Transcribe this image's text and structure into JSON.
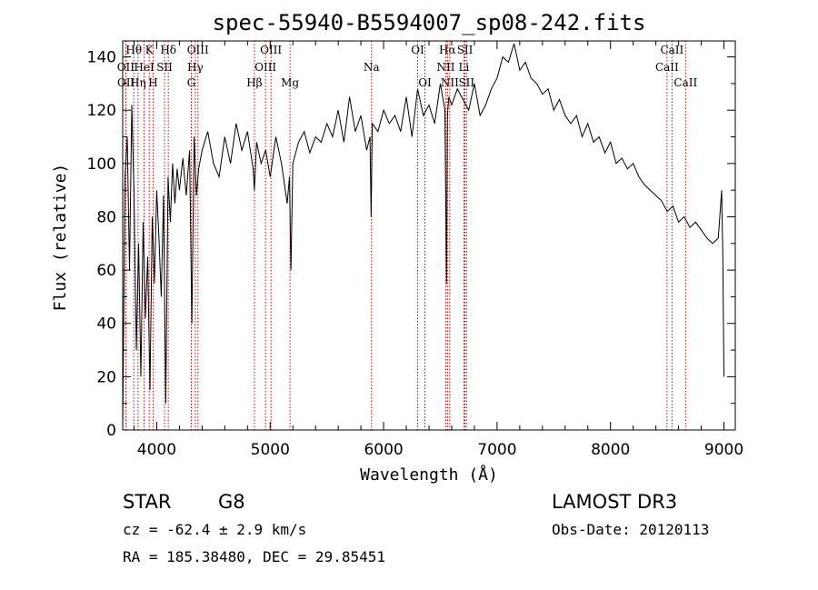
{
  "chart_data": {
    "type": "line",
    "title": "spec-55940-B5594007_sp08-242.fits",
    "xlabel": "Wavelength (Å)",
    "ylabel": "Flux (relative)",
    "xlim": [
      3700,
      9100
    ],
    "ylim": [
      0,
      146
    ],
    "xticks": [
      4000,
      5000,
      6000,
      7000,
      8000,
      9000
    ],
    "yticks": [
      0,
      20,
      40,
      60,
      80,
      100,
      120,
      140
    ],
    "grid": false,
    "series": [
      {
        "name": "flux",
        "x": [
          3700,
          3720,
          3740,
          3760,
          3780,
          3800,
          3820,
          3840,
          3860,
          3880,
          3900,
          3920,
          3940,
          3960,
          3980,
          4000,
          4020,
          4040,
          4060,
          4080,
          4100,
          4120,
          4140,
          4160,
          4180,
          4200,
          4230,
          4260,
          4290,
          4310,
          4330,
          4350,
          4370,
          4400,
          4450,
          4500,
          4550,
          4600,
          4650,
          4700,
          4750,
          4800,
          4850,
          4861,
          4880,
          4920,
          4960,
          5000,
          5050,
          5100,
          5150,
          5170,
          5183,
          5200,
          5250,
          5300,
          5350,
          5400,
          5450,
          5500,
          5550,
          5600,
          5650,
          5700,
          5750,
          5800,
          5850,
          5880,
          5890,
          5900,
          5950,
          6000,
          6050,
          6100,
          6150,
          6200,
          6250,
          6300,
          6350,
          6400,
          6450,
          6500,
          6540,
          6555,
          6563,
          6575,
          6600,
          6650,
          6700,
          6750,
          6800,
          6850,
          6900,
          6950,
          7000,
          7050,
          7100,
          7150,
          7200,
          7250,
          7300,
          7350,
          7400,
          7450,
          7500,
          7550,
          7600,
          7650,
          7700,
          7750,
          7800,
          7850,
          7900,
          7950,
          8000,
          8050,
          8100,
          8150,
          8200,
          8250,
          8300,
          8350,
          8400,
          8450,
          8500,
          8550,
          8600,
          8650,
          8700,
          8750,
          8800,
          8850,
          8900,
          8950,
          8980,
          8990,
          9000
        ],
        "values": [
          0,
          95,
          110,
          60,
          122,
          88,
          30,
          70,
          20,
          78,
          42,
          65,
          15,
          80,
          55,
          90,
          72,
          50,
          88,
          10,
          95,
          78,
          100,
          85,
          98,
          90,
          102,
          88,
          105,
          40,
          110,
          88,
          98,
          105,
          112,
          100,
          95,
          110,
          100,
          115,
          105,
          112,
          98,
          90,
          108,
          100,
          105,
          95,
          110,
          100,
          85,
          95,
          60,
          100,
          108,
          112,
          104,
          110,
          108,
          115,
          110,
          120,
          108,
          125,
          112,
          118,
          105,
          110,
          80,
          115,
          112,
          120,
          115,
          118,
          112,
          125,
          110,
          128,
          118,
          122,
          115,
          130,
          120,
          55,
          118,
          125,
          122,
          128,
          124,
          120,
          130,
          118,
          122,
          128,
          132,
          140,
          138,
          145,
          135,
          138,
          132,
          130,
          126,
          128,
          120,
          124,
          118,
          115,
          118,
          110,
          115,
          108,
          110,
          104,
          108,
          100,
          102,
          98,
          100,
          95,
          92,
          90,
          88,
          86,
          82,
          84,
          78,
          80,
          76,
          78,
          75,
          72,
          70,
          72,
          90,
          65,
          20
        ]
      }
    ],
    "spectral_lines": [
      {
        "label": "Hθ",
        "x": 3798,
        "row": 0
      },
      {
        "label": "OII",
        "x": 3727,
        "row": 1
      },
      {
        "label": "OII",
        "x": 3729,
        "row": 2
      },
      {
        "label": "K",
        "x": 3934,
        "row": 0
      },
      {
        "label": "HeI",
        "x": 3889,
        "row": 1
      },
      {
        "label": "Hη",
        "x": 3835,
        "row": 2
      },
      {
        "label": "Hδ",
        "x": 4102,
        "row": 0
      },
      {
        "label": "SII",
        "x": 4069,
        "row": 1
      },
      {
        "label": "H",
        "x": 3968,
        "row": 2
      },
      {
        "label": "OIII",
        "x": 4363,
        "row": 0
      },
      {
        "label": "Hγ",
        "x": 4340,
        "row": 1
      },
      {
        "label": "G",
        "x": 4305,
        "row": 2
      },
      {
        "label": "OIII",
        "x": 5007,
        "row": 0
      },
      {
        "label": "OIII",
        "x": 4959,
        "row": 1
      },
      {
        "label": "Hβ",
        "x": 4861,
        "row": 2
      },
      {
        "label": "Mg",
        "x": 5175,
        "row": 2
      },
      {
        "label": "Na",
        "x": 5893,
        "row": 1
      },
      {
        "label": "OI",
        "x": 6300,
        "row": 0
      },
      {
        "label": "OI",
        "x": 6364,
        "row": 2
      },
      {
        "label": "Hα",
        "x": 6563,
        "row": 0
      },
      {
        "label": "SII",
        "x": 6717,
        "row": 0
      },
      {
        "label": "NII",
        "x": 6548,
        "row": 1
      },
      {
        "label": "Li",
        "x": 6708,
        "row": 1
      },
      {
        "label": "NII",
        "x": 6583,
        "row": 2
      },
      {
        "label": "SII",
        "x": 6731,
        "row": 2
      },
      {
        "label": "CaII",
        "x": 8542,
        "row": 0
      },
      {
        "label": "CaII",
        "x": 8498,
        "row": 1
      },
      {
        "label": "CaII",
        "x": 8662,
        "row": 2
      }
    ]
  },
  "info": {
    "object_class": "STAR",
    "subclass": "G8",
    "survey": "LAMOST DR3",
    "redshift": "cz = -62.4 ± 2.9 km/s",
    "obs_date": "Obs-Date: 20120113",
    "coordinates": "RA = 185.38480, DEC =  29.85451"
  },
  "colors": {
    "spectrum": "#000000",
    "line_marker": "#cc0000",
    "axes": "#000000"
  }
}
